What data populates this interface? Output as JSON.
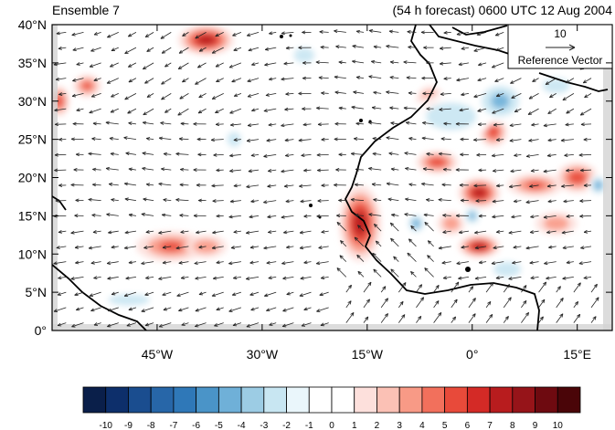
{
  "header": {
    "left_title": "Ensemble 7",
    "right_title": "(54 h forecast) 0600 UTC 12 Aug 2004"
  },
  "reference_vector": {
    "magnitude_label": "10",
    "caption": "Reference Vector"
  },
  "axes": {
    "lon_range": [
      -60,
      20
    ],
    "lat_range": [
      0,
      40
    ],
    "lat_ticks": [
      {
        "value": 40,
        "label": "40°N"
      },
      {
        "value": 35,
        "label": "35°N"
      },
      {
        "value": 30,
        "label": "30°N"
      },
      {
        "value": 25,
        "label": "25°N"
      },
      {
        "value": 20,
        "label": "20°N"
      },
      {
        "value": 15,
        "label": "15°N"
      },
      {
        "value": 10,
        "label": "10°N"
      },
      {
        "value": 5,
        "label": "5°N"
      },
      {
        "value": 0,
        "label": "0°"
      }
    ],
    "lon_ticks": [
      {
        "value": -45,
        "label": "45°W"
      },
      {
        "value": -30,
        "label": "30°W"
      },
      {
        "value": -15,
        "label": "15°W"
      },
      {
        "value": 0,
        "label": "0°"
      },
      {
        "value": 15,
        "label": "15°E"
      }
    ]
  },
  "colorbar": {
    "labels": [
      "-10",
      "-9",
      "-8",
      "-7",
      "-6",
      "-5",
      "-4",
      "-3",
      "-2",
      "-1",
      "0",
      "1",
      "2",
      "3",
      "4",
      "5",
      "6",
      "7",
      "8",
      "9",
      "10"
    ],
    "colors": [
      "#0a1f4a",
      "#0d2f6b",
      "#1a4d8f",
      "#2766a8",
      "#2f78b8",
      "#4a94c8",
      "#6fb0d8",
      "#9ccce4",
      "#c8e6f2",
      "#eaf6fb",
      "#ffffff",
      "#ffffff",
      "#fde0dc",
      "#fbc1b5",
      "#f89a86",
      "#f2705c",
      "#e84a3a",
      "#d42a26",
      "#b81c1e",
      "#961419",
      "#6e0a10",
      "#4a0508"
    ]
  },
  "anomaly_blobs": [
    {
      "lon": -38,
      "lat": 38,
      "rx": 4,
      "ry": 2,
      "v": 8
    },
    {
      "lon": -55,
      "lat": 32,
      "rx": 2,
      "ry": 1.5,
      "v": 5
    },
    {
      "lon": -59,
      "lat": 30,
      "rx": 1.5,
      "ry": 2,
      "v": 6
    },
    {
      "lon": -43,
      "lat": 11,
      "rx": 5,
      "ry": 2,
      "v": 5
    },
    {
      "lon": -38,
      "lat": 11,
      "rx": 3,
      "ry": 1.5,
      "v": 4
    },
    {
      "lon": -16,
      "lat": 14,
      "rx": 3,
      "ry": 5,
      "v": 8
    },
    {
      "lon": -6,
      "lat": 30,
      "rx": 2,
      "ry": 2,
      "v": 5
    },
    {
      "lon": 3,
      "lat": 26,
      "rx": 2,
      "ry": 2,
      "v": 6
    },
    {
      "lon": -5,
      "lat": 22,
      "rx": 3,
      "ry": 1.5,
      "v": 6
    },
    {
      "lon": 1,
      "lat": 18,
      "rx": 3,
      "ry": 2,
      "v": 8
    },
    {
      "lon": 9,
      "lat": 19,
      "rx": 4,
      "ry": 1.5,
      "v": 5
    },
    {
      "lon": 15,
      "lat": 20,
      "rx": 3,
      "ry": 2,
      "v": 6
    },
    {
      "lon": 1,
      "lat": 11,
      "rx": 3,
      "ry": 1.5,
      "v": 8
    },
    {
      "lon": -3,
      "lat": 14,
      "rx": 2,
      "ry": 1.5,
      "v": 4
    },
    {
      "lon": 12,
      "lat": 14,
      "rx": 3,
      "ry": 1.5,
      "v": 4
    },
    {
      "lon": -24,
      "lat": 36,
      "rx": 3,
      "ry": 2,
      "v": -3
    },
    {
      "lon": -3,
      "lat": 28,
      "rx": 6,
      "ry": 3,
      "v": -4
    },
    {
      "lon": 4,
      "lat": 30,
      "rx": 4,
      "ry": 3,
      "v": -5
    },
    {
      "lon": 12,
      "lat": 32,
      "rx": 4,
      "ry": 2,
      "v": -3
    },
    {
      "lon": -8,
      "lat": 14,
      "rx": 1.5,
      "ry": 1.5,
      "v": -6
    },
    {
      "lon": 0,
      "lat": 15,
      "rx": 1.5,
      "ry": 1.5,
      "v": -5
    },
    {
      "lon": 18,
      "lat": 19,
      "rx": 1.5,
      "ry": 1.5,
      "v": -6
    },
    {
      "lon": -34,
      "lat": 25,
      "rx": 2,
      "ry": 2,
      "v": -3
    },
    {
      "lon": -49,
      "lat": 4,
      "rx": 6,
      "ry": 1.5,
      "v": -3
    },
    {
      "lon": -52,
      "lat": 22,
      "rx": 4,
      "ry": 1.5,
      "v": -2
    },
    {
      "lon": -30,
      "lat": 30,
      "rx": 8,
      "ry": 2,
      "v": -2
    },
    {
      "lon": -10,
      "lat": 6,
      "rx": 8,
      "ry": 1.5,
      "v": -2
    },
    {
      "lon": 5,
      "lat": 8,
      "rx": 4,
      "ry": 2,
      "v": -3
    }
  ]
}
